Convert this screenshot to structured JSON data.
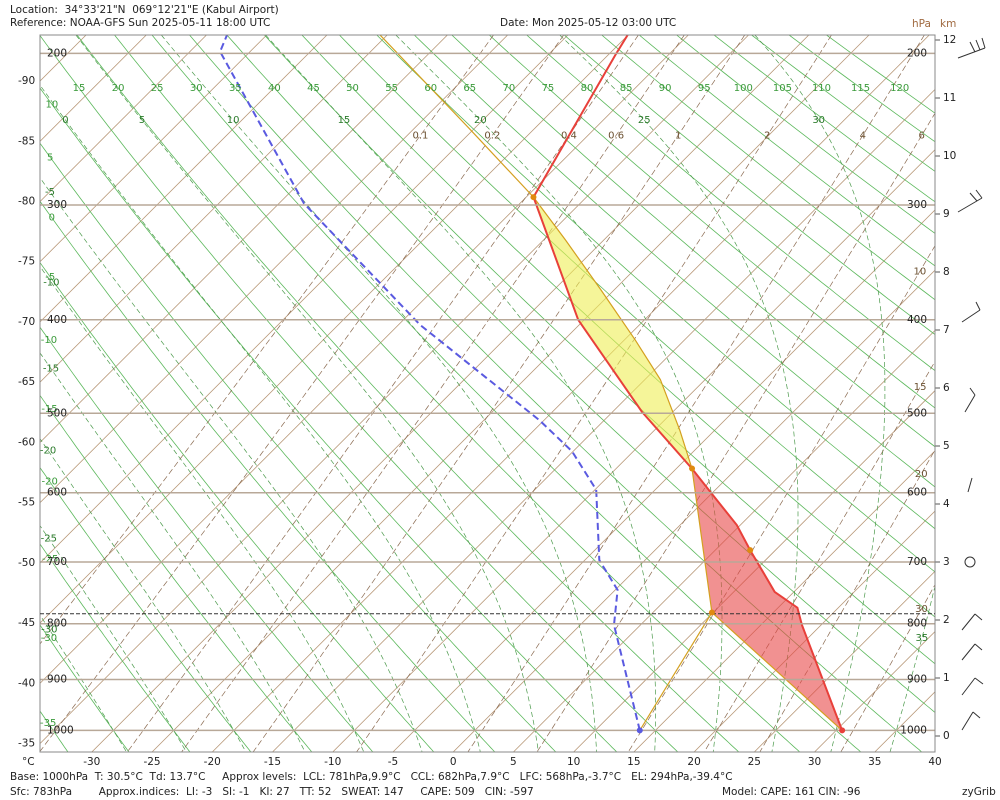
{
  "header": {
    "location": "Location:  34°33'21\"N  069°12'21\"E (Kabul Airport)",
    "reference": "Reference: NOAA-GFS Sun 2025-05-11 18:00 UTC",
    "date": "Date: Mon 2025-05-12 03:00 UTC"
  },
  "chart_data": {
    "type": "skew-t",
    "x_unit_label": "°C",
    "pressure_unit_label": "hPa",
    "height_unit_label": "km",
    "xlim": [
      -34.3,
      40
    ],
    "xticks": [
      -30,
      -25,
      -20,
      -15,
      -10,
      -5,
      0,
      5,
      10,
      15,
      20,
      25,
      30,
      35,
      40
    ],
    "isotherm_edge_ticks": [
      -90,
      -85,
      -80,
      -75,
      -70,
      -65,
      -60,
      -55,
      -50,
      -45,
      -40,
      -35
    ],
    "ylim": [
      1045,
      190
    ],
    "yticks": [
      1000,
      900,
      800,
      700,
      600,
      500,
      400,
      300,
      200
    ],
    "height_lim": [
      -0.276,
      12.086
    ],
    "height_ticks": [
      0,
      1,
      2,
      3,
      4,
      5,
      6,
      7,
      8,
      9,
      10,
      11,
      12
    ],
    "dry_adiabats": [
      -35,
      -30,
      -25,
      -20,
      -15,
      -10,
      -5,
      0,
      5,
      10,
      15,
      20,
      25,
      30,
      35,
      40,
      45,
      50,
      55,
      60,
      65,
      70,
      75,
      80,
      85,
      90,
      95,
      100,
      105,
      110,
      115,
      120
    ],
    "moist_adiabats": [
      -30,
      -25,
      -20,
      -15,
      -10,
      -5,
      0,
      5,
      10,
      15,
      20,
      25,
      30,
      35
    ],
    "mixing_ratios": [
      0.1,
      0.2,
      0.4,
      0.6,
      1,
      2,
      4,
      6,
      10,
      15,
      20,
      30
    ],
    "temperature": {
      "color": "#e8403a",
      "pressure": [
        1000,
        802,
        773,
        747,
        682,
        645,
        603,
        568,
        498,
        400,
        294,
        201,
        189
      ],
      "values": [
        30.5,
        18.4,
        16.6,
        13.4,
        7.9,
        4.7,
        0.2,
        -3.7,
        -12.6,
        -25.5,
        -39.4,
        -44.4,
        -45.1
      ]
    },
    "dewpoint": {
      "color": "#5a5ae0",
      "pressure": [
        1000,
        802,
        744,
        697,
        596,
        546,
        508,
        405,
        299,
        199,
        190
      ],
      "values": [
        13.7,
        2.8,
        0.2,
        -3.8,
        -9.9,
        -15.1,
        -20.4,
        -38.2,
        -57.9,
        -77.5,
        -78.3
      ]
    },
    "parcel": {
      "color": "#d4a020",
      "pressure": [
        1000,
        781,
        568,
        520,
        462,
        420,
        371,
        328,
        294,
        246,
        190
      ],
      "values": [
        30.5,
        9.9,
        -3.7,
        -7.9,
        -13.7,
        -19.1,
        -26.2,
        -33.2,
        -39.4,
        -50.3,
        -65.6
      ]
    },
    "parcel_moisture": {
      "color": "#d4a020",
      "pressure": [
        1000,
        781
      ],
      "values": [
        13.7,
        9.9
      ]
    },
    "cin_color": "#e84848",
    "cape_color": "#eeee55",
    "levels": {
      "lcl": {
        "pressure": 781,
        "temp": 9.9
      },
      "ccl": {
        "pressure": 682,
        "temp": 7.9
      },
      "lfc": {
        "pressure": 568,
        "temp": -3.7
      },
      "el": {
        "pressure": 294,
        "temp": -39.4
      }
    },
    "level_color": "#e08a10",
    "surface_pressure": 783
  },
  "footer": {
    "line1": "Base: 1000hPa  T: 30.5°C  Td: 13.7°C     Approx levels:  LCL: 781hPa,9.9°C   CCL: 682hPa,7.9°C   LFC: 568hPa,-3.7°C   EL: 294hPa,-39.4°C",
    "line2": "Sfc: 783hPa        Approx.indices:  LI: -3   SI: -1   KI: 27   TT: 52   SWEAT: 147     CAPE: 509   CIN: -597",
    "model": "Model: CAPE: 161 CIN: -96",
    "brand": "zyGrib"
  }
}
